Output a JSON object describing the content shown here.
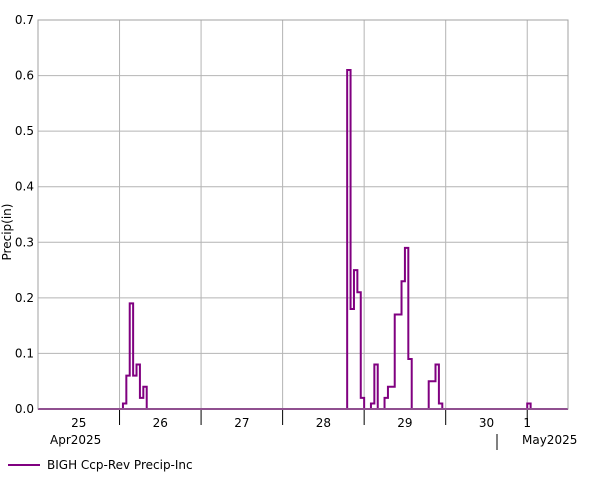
{
  "chart_data": {
    "type": "line",
    "step": true,
    "ylabel": "Precip(in)",
    "ylim": [
      0,
      0.7
    ],
    "yticks": [
      "0.0",
      "0.1",
      "0.2",
      "0.3",
      "0.4",
      "0.5",
      "0.6",
      "0.7"
    ],
    "xlim": [
      "2025-04-25T00:00",
      "2025-05-01T12:00"
    ],
    "x_day_labels": [
      {
        "date": "2025-04-25T00:00",
        "label": "25"
      },
      {
        "date": "2025-04-26T00:00",
        "label": "26"
      },
      {
        "date": "2025-04-27T00:00",
        "label": "27"
      },
      {
        "date": "2025-04-28T00:00",
        "label": "28"
      },
      {
        "date": "2025-04-29T00:00",
        "label": "29"
      },
      {
        "date": "2025-04-30T00:00",
        "label": "30"
      },
      {
        "date": "2025-05-01T00:00",
        "label": "1"
      }
    ],
    "x_month_labels": [
      {
        "date": "2025-04-25T00:00",
        "label": "Apr2025"
      },
      {
        "date": "2025-05-01T00:00",
        "label": "May2025"
      }
    ],
    "grid": true,
    "legend_position": "bottom-left",
    "series": [
      {
        "name": "BIGH Ccp-Rev Precip-Inc",
        "color": "#800080",
        "x": [
          "2025-04-26T00:00",
          "2025-04-26T01:00",
          "2025-04-26T02:00",
          "2025-04-26T03:00",
          "2025-04-26T04:00",
          "2025-04-26T05:00",
          "2025-04-26T06:00",
          "2025-04-26T07:00",
          "2025-04-26T08:00",
          "2025-04-26T09:00",
          "2025-04-28T18:00",
          "2025-04-28T19:00",
          "2025-04-28T20:00",
          "2025-04-28T21:00",
          "2025-04-28T22:00",
          "2025-04-28T23:00",
          "2025-04-29T00:00",
          "2025-04-29T01:00",
          "2025-04-29T02:00",
          "2025-04-29T03:00",
          "2025-04-29T04:00",
          "2025-04-29T05:00",
          "2025-04-29T06:00",
          "2025-04-29T07:00",
          "2025-04-29T08:00",
          "2025-04-29T09:00",
          "2025-04-29T10:00",
          "2025-04-29T11:00",
          "2025-04-29T12:00",
          "2025-04-29T13:00",
          "2025-04-29T14:00",
          "2025-04-29T15:00",
          "2025-04-29T16:00",
          "2025-04-29T17:00",
          "2025-04-29T18:00",
          "2025-04-29T19:00",
          "2025-04-29T20:00",
          "2025-04-29T21:00",
          "2025-04-29T22:00",
          "2025-04-29T23:00",
          "2025-04-30T00:00",
          "2025-04-30T01:00",
          "2025-04-30T02:00",
          "2025-04-30T03:00",
          "2025-04-30T23:00",
          "2025-05-01T00:00",
          "2025-05-01T01:00"
        ],
        "values": [
          0.0,
          0.01,
          0.06,
          0.19,
          0.06,
          0.08,
          0.02,
          0.04,
          0.0,
          0.0,
          0.0,
          0.61,
          0.18,
          0.25,
          0.21,
          0.02,
          0.0,
          0.0,
          0.01,
          0.08,
          0.0,
          0.0,
          0.02,
          0.04,
          0.04,
          0.17,
          0.17,
          0.23,
          0.29,
          0.09,
          0.0,
          0.0,
          0.0,
          0.0,
          0.0,
          0.05,
          0.05,
          0.08,
          0.01,
          0.0,
          0.0,
          0.0,
          0.0,
          0.0,
          0.0,
          0.01,
          0.0
        ]
      }
    ]
  }
}
